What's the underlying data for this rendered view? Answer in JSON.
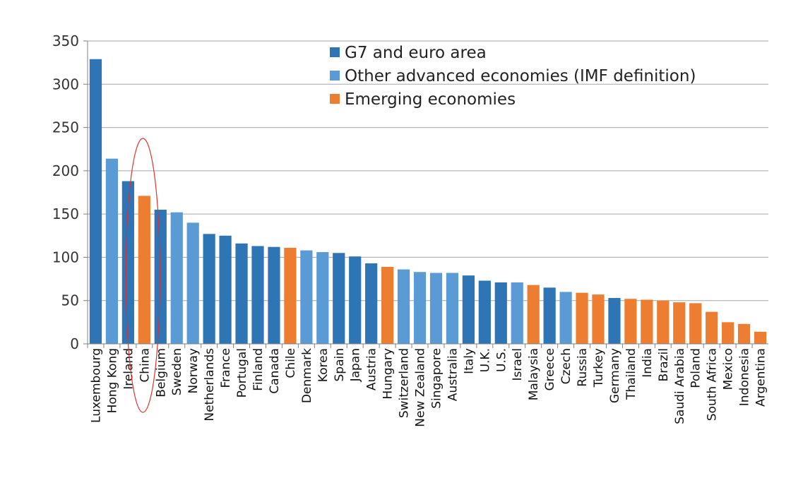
{
  "chart_data": {
    "type": "bar",
    "title": "",
    "xlabel": "",
    "ylabel": "",
    "ylim": [
      0,
      350
    ],
    "yticks": [
      0,
      50,
      100,
      150,
      200,
      250,
      300,
      350
    ],
    "grid": true,
    "legend_position": "top-center",
    "colors": {
      "G7 and euro area": "#2e75b6",
      "Other advanced economies (IMF definition)": "#5b9bd5",
      "Emerging economies": "#ed7d31"
    },
    "legend": [
      "G7 and euro area",
      "Other advanced economies (IMF definition)",
      "Emerging economies"
    ],
    "highlight": "China",
    "categories": [
      "Luxembourg",
      "Hong Kong",
      "Ireland",
      "China",
      "Belgium",
      "Sweden",
      "Norway",
      "Netherlands",
      "France",
      "Portugal",
      "Finland",
      "Canada",
      "Chile",
      "Denmark",
      "Korea",
      "Spain",
      "Japan",
      "Austria",
      "Hungary",
      "Switzerland",
      "New Zealand",
      "Singapore",
      "Australia",
      "Italy",
      "U.K.",
      "U.S.",
      "Israel",
      "Malaysia",
      "Greece",
      "Czech",
      "Russia",
      "Turkey",
      "Germany",
      "Thailand",
      "India",
      "Brazil",
      "Saudi Arabia",
      "Poland",
      "South Africa",
      "Mexico",
      "Indonesia",
      "Argentina"
    ],
    "values": [
      329,
      214,
      188,
      171,
      155,
      152,
      140,
      127,
      125,
      116,
      113,
      112,
      111,
      108,
      106,
      105,
      101,
      93,
      89,
      86,
      83,
      82,
      82,
      79,
      73,
      71,
      71,
      68,
      65,
      60,
      59,
      57,
      53,
      52,
      51,
      50,
      48,
      47,
      37,
      25,
      23,
      14
    ],
    "groups": [
      "G7 and euro area",
      "Other advanced economies (IMF definition)",
      "G7 and euro area",
      "Emerging economies",
      "G7 and euro area",
      "Other advanced economies (IMF definition)",
      "Other advanced economies (IMF definition)",
      "G7 and euro area",
      "G7 and euro area",
      "G7 and euro area",
      "G7 and euro area",
      "G7 and euro area",
      "Emerging economies",
      "Other advanced economies (IMF definition)",
      "Other advanced economies (IMF definition)",
      "G7 and euro area",
      "G7 and euro area",
      "G7 and euro area",
      "Emerging economies",
      "Other advanced economies (IMF definition)",
      "Other advanced economies (IMF definition)",
      "Other advanced economies (IMF definition)",
      "Other advanced economies (IMF definition)",
      "G7 and euro area",
      "G7 and euro area",
      "G7 and euro area",
      "Other advanced economies (IMF definition)",
      "Emerging economies",
      "G7 and euro area",
      "Other advanced economies (IMF definition)",
      "Emerging economies",
      "Emerging economies",
      "G7 and euro area",
      "Emerging economies",
      "Emerging economies",
      "Emerging economies",
      "Emerging economies",
      "Emerging economies",
      "Emerging economies",
      "Emerging economies",
      "Emerging economies",
      "Emerging economies"
    ]
  }
}
